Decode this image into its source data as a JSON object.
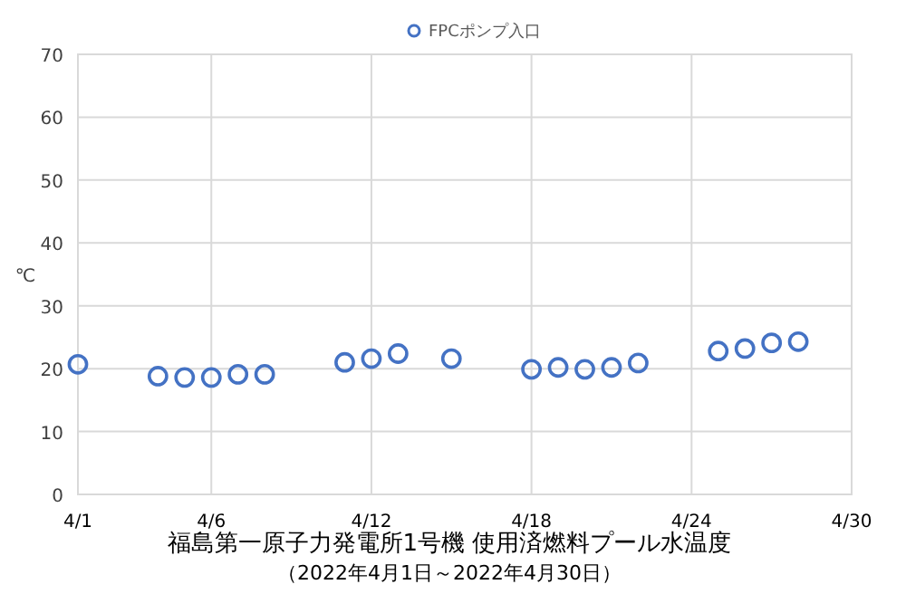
{
  "chart_data": {
    "type": "scatter",
    "title": "福島第一原子力発電所1号機  使用済燃料プール水温度",
    "subtitle": "（2022年4月1日～2022年4月30日）",
    "ylabel": "℃",
    "x": [
      "2022-04-01",
      "2022-04-04",
      "2022-04-05",
      "2022-04-06",
      "2022-04-07",
      "2022-04-08",
      "2022-04-11",
      "2022-04-12",
      "2022-04-13",
      "2022-04-15",
      "2022-04-18",
      "2022-04-19",
      "2022-04-20",
      "2022-04-21",
      "2022-04-22",
      "2022-04-25",
      "2022-04-26",
      "2022-04-27",
      "2022-04-28"
    ],
    "series": [
      {
        "name": "FPCポンプ入口",
        "color": "#4472c4",
        "values": [
          20.7,
          18.8,
          18.6,
          18.6,
          19.1,
          19.1,
          21.0,
          21.6,
          22.4,
          21.6,
          19.9,
          20.2,
          19.9,
          20.2,
          20.9,
          22.8,
          23.2,
          24.1,
          24.3
        ]
      }
    ],
    "xlim": [
      "2022-04-01",
      "2022-04-30"
    ],
    "xticks": [
      {
        "value": "2022-04-01",
        "label": "4/1"
      },
      {
        "value": "2022-04-06",
        "label": "4/6"
      },
      {
        "value": "2022-04-12",
        "label": "4/12"
      },
      {
        "value": "2022-04-18",
        "label": "4/18"
      },
      {
        "value": "2022-04-24",
        "label": "4/24"
      },
      {
        "value": "2022-04-30",
        "label": "4/30"
      }
    ],
    "ylim": [
      0,
      70
    ],
    "yticks": [
      0,
      10,
      20,
      30,
      40,
      50,
      60,
      70
    ],
    "grid": true,
    "legend": "top",
    "marker": "circle"
  }
}
